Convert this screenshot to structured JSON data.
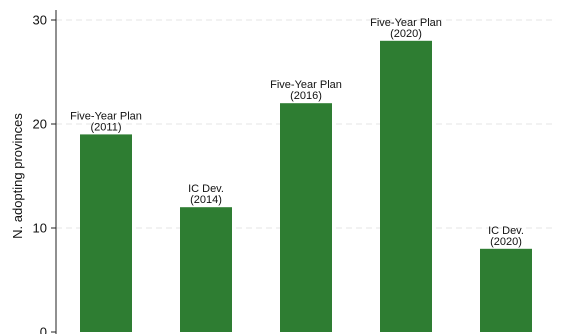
{
  "chart_data": {
    "type": "bar",
    "categories": [
      "Five-Year Plan (2011)",
      "IC Dev. (2014)",
      "Five-Year Plan (2016)",
      "Five-Year Plan (2020)",
      "IC Dev. (2020)"
    ],
    "values": [
      19,
      12,
      22,
      28,
      8
    ],
    "bar_labels": [
      [
        "Five-Year Plan",
        "(2011)"
      ],
      [
        "IC Dev.",
        "(2014)"
      ],
      [
        "Five-Year Plan",
        "(2016)"
      ],
      [
        "Five-Year Plan",
        "(2020)"
      ],
      [
        "IC Dev.",
        "(2020)"
      ]
    ],
    "title": "",
    "xlabel": "",
    "ylabel": "N. adopting provinces",
    "ylim": [
      0,
      30
    ],
    "yticks": [
      0,
      10,
      20,
      30
    ],
    "grid": true,
    "colors": {
      "bar": "#2e7d32",
      "grid": "#e6e6e6",
      "axis": "#222222"
    }
  }
}
